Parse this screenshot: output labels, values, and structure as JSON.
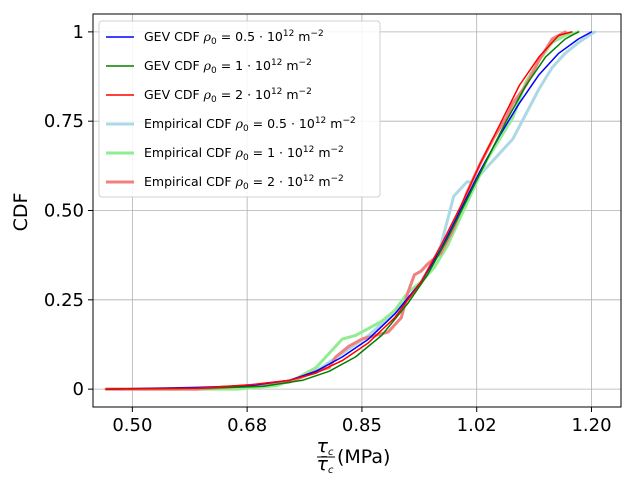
{
  "chart_data": {
    "type": "line",
    "title": "",
    "xlabel": "τc / τ̄c (MPa)",
    "xlabel_parts": {
      "num": "τ",
      "num_sub": "c",
      "den": "τ̄",
      "den_sub": "c",
      "unit": "(MPa)"
    },
    "ylabel": "CDF",
    "xlim": [
      0.44,
      1.245
    ],
    "ylim": [
      -0.05,
      1.05
    ],
    "grid": true,
    "legend_position": "top-left",
    "x_ticks": [
      {
        "value": 0.5,
        "label": "0.50"
      },
      {
        "value": 0.675,
        "label": "0.68"
      },
      {
        "value": 0.85,
        "label": "0.85"
      },
      {
        "value": 1.025,
        "label": "1.02"
      },
      {
        "value": 1.2,
        "label": "1.20"
      }
    ],
    "y_ticks": [
      {
        "value": 0,
        "label": "0"
      },
      {
        "value": 0.25,
        "label": "0.25"
      },
      {
        "value": 0.5,
        "label": "0.50"
      },
      {
        "value": 0.75,
        "label": "0.75"
      },
      {
        "value": 1,
        "label": "1"
      }
    ],
    "series": [
      {
        "name": "emp-0.5",
        "legend_prefix": "Empirical CDF ",
        "legend_rho": "ρ",
        "legend_expr": "= 0.5 · 10",
        "legend_exp": "12",
        "legend_unit": " m",
        "legend_unit_exp": "−2",
        "color": "#add8e6",
        "kind": "empirical",
        "x": [
          0.46,
          0.6,
          0.68,
          0.74,
          0.78,
          0.82,
          0.86,
          0.89,
          0.91,
          0.93,
          0.95,
          0.97,
          0.98,
          0.99,
          1.0,
          1.01,
          1.02,
          1.03,
          1.04,
          1.05,
          1.06,
          1.08,
          1.1,
          1.12,
          1.14,
          1.16,
          1.18,
          1.2,
          1.205
        ],
        "y": [
          0.0,
          0.0,
          0.01,
          0.02,
          0.05,
          0.1,
          0.15,
          0.2,
          0.24,
          0.27,
          0.33,
          0.4,
          0.47,
          0.54,
          0.56,
          0.58,
          0.58,
          0.6,
          0.62,
          0.64,
          0.66,
          0.7,
          0.77,
          0.84,
          0.9,
          0.94,
          0.97,
          0.995,
          1.0
        ]
      },
      {
        "name": "emp-1",
        "legend_prefix": "Empirical CDF  ",
        "legend_rho": "ρ",
        "legend_expr": "= 1 · 10",
        "legend_exp": "12",
        "legend_unit": " m",
        "legend_unit_exp": "−2",
        "color": "#90ee90",
        "kind": "empirical",
        "x": [
          0.46,
          0.6,
          0.66,
          0.72,
          0.75,
          0.78,
          0.8,
          0.82,
          0.84,
          0.86,
          0.88,
          0.9,
          0.92,
          0.94,
          0.96,
          0.98,
          1.0,
          1.02,
          1.04,
          1.06,
          1.08,
          1.1,
          1.12,
          1.14,
          1.16,
          1.18
        ],
        "y": [
          0.0,
          0.0,
          0.0,
          0.01,
          0.03,
          0.06,
          0.1,
          0.14,
          0.15,
          0.17,
          0.19,
          0.22,
          0.27,
          0.3,
          0.34,
          0.4,
          0.48,
          0.56,
          0.64,
          0.7,
          0.76,
          0.86,
          0.92,
          0.97,
          0.99,
          1.0
        ]
      },
      {
        "name": "emp-2",
        "legend_prefix": "Empirical CDF  ",
        "legend_rho": "ρ",
        "legend_expr": "= 2 · 10",
        "legend_exp": "12",
        "legend_unit": " m",
        "legend_unit_exp": "−2",
        "color": "#f08080",
        "kind": "empirical",
        "x": [
          0.46,
          0.6,
          0.68,
          0.74,
          0.78,
          0.8,
          0.81,
          0.83,
          0.85,
          0.87,
          0.89,
          0.91,
          0.92,
          0.93,
          0.94,
          0.95,
          0.97,
          0.99,
          1.01,
          1.03,
          1.05,
          1.07,
          1.08,
          1.1,
          1.12,
          1.14,
          1.16
        ],
        "y": [
          0.0,
          0.0,
          0.01,
          0.02,
          0.05,
          0.06,
          0.09,
          0.12,
          0.14,
          0.15,
          0.16,
          0.2,
          0.27,
          0.32,
          0.33,
          0.35,
          0.38,
          0.45,
          0.55,
          0.63,
          0.7,
          0.76,
          0.8,
          0.85,
          0.92,
          0.98,
          1.0
        ]
      },
      {
        "name": "gev-0.5",
        "legend_prefix": "GEV CDF ",
        "legend_rho": "ρ",
        "legend_expr": "= 0.5 · 10",
        "legend_exp": "12",
        "legend_unit": " m",
        "legend_unit_exp": "−2",
        "color": "#0000ff",
        "kind": "gev",
        "x": [
          0.46,
          0.6,
          0.68,
          0.74,
          0.78,
          0.82,
          0.86,
          0.9,
          0.94,
          0.97,
          1.0,
          1.03,
          1.06,
          1.09,
          1.12,
          1.15,
          1.18,
          1.2
        ],
        "y": [
          0.0,
          0.005,
          0.01,
          0.025,
          0.05,
          0.09,
          0.14,
          0.21,
          0.3,
          0.39,
          0.5,
          0.61,
          0.71,
          0.8,
          0.88,
          0.94,
          0.98,
          1.0
        ]
      },
      {
        "name": "gev-1",
        "legend_prefix": "GEV CDF ",
        "legend_rho": "ρ",
        "legend_expr": "= 1 · 10",
        "legend_exp": "12",
        "legend_unit": " m",
        "legend_unit_exp": "−2",
        "color": "#008000",
        "kind": "gev",
        "x": [
          0.46,
          0.6,
          0.7,
          0.76,
          0.8,
          0.84,
          0.88,
          0.92,
          0.95,
          0.98,
          1.01,
          1.04,
          1.07,
          1.1,
          1.13,
          1.16,
          1.18
        ],
        "y": [
          0.0,
          0.002,
          0.008,
          0.025,
          0.05,
          0.09,
          0.15,
          0.24,
          0.32,
          0.42,
          0.53,
          0.64,
          0.75,
          0.85,
          0.93,
          0.98,
          1.0
        ]
      },
      {
        "name": "gev-2",
        "legend_prefix": "GEV CDF ",
        "legend_rho": "ρ",
        "legend_expr": "= 2 · 10",
        "legend_exp": "12",
        "legend_unit": " m",
        "legend_unit_exp": "−2",
        "color": "#ff0000",
        "kind": "gev",
        "x": [
          0.46,
          0.6,
          0.68,
          0.74,
          0.78,
          0.82,
          0.86,
          0.9,
          0.94,
          0.97,
          1.0,
          1.03,
          1.06,
          1.09,
          1.12,
          1.15,
          1.17
        ],
        "y": [
          0.0,
          0.003,
          0.012,
          0.025,
          0.045,
          0.08,
          0.13,
          0.2,
          0.3,
          0.4,
          0.51,
          0.63,
          0.74,
          0.85,
          0.93,
          0.99,
          1.0
        ]
      }
    ],
    "legend_order": [
      "gev-0.5",
      "gev-1",
      "gev-2",
      "emp-0.5",
      "emp-1",
      "emp-2"
    ]
  }
}
